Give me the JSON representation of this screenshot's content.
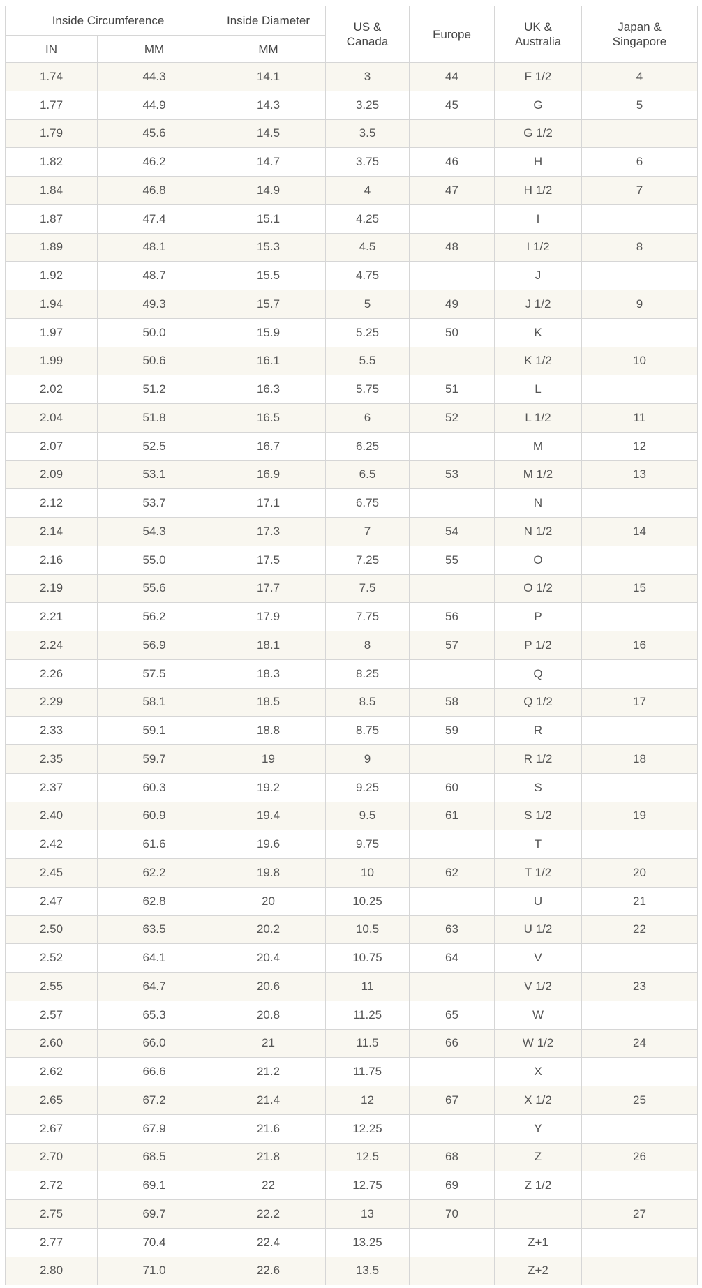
{
  "header": {
    "inside_circumference": "Inside Circumference",
    "inside_diameter": "Inside Diameter",
    "us_canada": [
      "US &",
      "Canada"
    ],
    "europe": "Europe",
    "uk_australia": [
      "UK &",
      "Australia"
    ],
    "japan_singapore": [
      "Japan &",
      "Singapore"
    ],
    "in": "IN",
    "mm": "MM",
    "mm2": "MM"
  },
  "colors": {
    "stripe": "#f9f7f0",
    "border": "#d6d6d6",
    "text": "#555555"
  },
  "rows": [
    [
      "1.74",
      "44.3",
      "14.1",
      "3",
      "44",
      "F 1/2",
      "4"
    ],
    [
      "1.77",
      "44.9",
      "14.3",
      "3.25",
      "45",
      "G",
      "5"
    ],
    [
      "1.79",
      "45.6",
      "14.5",
      "3.5",
      "",
      "G 1/2",
      ""
    ],
    [
      "1.82",
      "46.2",
      "14.7",
      "3.75",
      "46",
      "H",
      "6"
    ],
    [
      "1.84",
      "46.8",
      "14.9",
      "4",
      "47",
      "H 1/2",
      "7"
    ],
    [
      "1.87",
      "47.4",
      "15.1",
      "4.25",
      "",
      "I",
      ""
    ],
    [
      "1.89",
      "48.1",
      "15.3",
      "4.5",
      "48",
      "I 1/2",
      "8"
    ],
    [
      "1.92",
      "48.7",
      "15.5",
      "4.75",
      "",
      "J",
      ""
    ],
    [
      "1.94",
      "49.3",
      "15.7",
      "5",
      "49",
      "J 1/2",
      "9"
    ],
    [
      "1.97",
      "50.0",
      "15.9",
      "5.25",
      "50",
      "K",
      ""
    ],
    [
      "1.99",
      "50.6",
      "16.1",
      "5.5",
      "",
      "K 1/2",
      "10"
    ],
    [
      "2.02",
      "51.2",
      "16.3",
      "5.75",
      "51",
      "L",
      ""
    ],
    [
      "2.04",
      "51.8",
      "16.5",
      "6",
      "52",
      "L 1/2",
      "11"
    ],
    [
      "2.07",
      "52.5",
      "16.7",
      "6.25",
      "",
      "M",
      "12"
    ],
    [
      "2.09",
      "53.1",
      "16.9",
      "6.5",
      "53",
      "M 1/2",
      "13"
    ],
    [
      "2.12",
      "53.7",
      "17.1",
      "6.75",
      "",
      "N",
      ""
    ],
    [
      "2.14",
      "54.3",
      "17.3",
      "7",
      "54",
      "N 1/2",
      "14"
    ],
    [
      "2.16",
      "55.0",
      "17.5",
      "7.25",
      "55",
      "O",
      ""
    ],
    [
      "2.19",
      "55.6",
      "17.7",
      "7.5",
      "",
      "O 1/2",
      "15"
    ],
    [
      "2.21",
      "56.2",
      "17.9",
      "7.75",
      "56",
      "P",
      ""
    ],
    [
      "2.24",
      "56.9",
      "18.1",
      "8",
      "57",
      "P 1/2",
      "16"
    ],
    [
      "2.26",
      "57.5",
      "18.3",
      "8.25",
      "",
      "Q",
      ""
    ],
    [
      "2.29",
      "58.1",
      "18.5",
      "8.5",
      "58",
      "Q 1/2",
      "17"
    ],
    [
      "2.33",
      "59.1",
      "18.8",
      "8.75",
      "59",
      "R",
      ""
    ],
    [
      "2.35",
      "59.7",
      "19",
      "9",
      "",
      "R 1/2",
      "18"
    ],
    [
      "2.37",
      "60.3",
      "19.2",
      "9.25",
      "60",
      "S",
      ""
    ],
    [
      "2.40",
      "60.9",
      "19.4",
      "9.5",
      "61",
      "S 1/2",
      "19"
    ],
    [
      "2.42",
      "61.6",
      "19.6",
      "9.75",
      "",
      "T",
      ""
    ],
    [
      "2.45",
      "62.2",
      "19.8",
      "10",
      "62",
      "T 1/2",
      "20"
    ],
    [
      "2.47",
      "62.8",
      "20",
      "10.25",
      "",
      "U",
      "21"
    ],
    [
      "2.50",
      "63.5",
      "20.2",
      "10.5",
      "63",
      "U 1/2",
      "22"
    ],
    [
      "2.52",
      "64.1",
      "20.4",
      "10.75",
      "64",
      "V",
      ""
    ],
    [
      "2.55",
      "64.7",
      "20.6",
      "11",
      "",
      "V 1/2",
      "23"
    ],
    [
      "2.57",
      "65.3",
      "20.8",
      "11.25",
      "65",
      "W",
      ""
    ],
    [
      "2.60",
      "66.0",
      "21",
      "11.5",
      "66",
      "W 1/2",
      "24"
    ],
    [
      "2.62",
      "66.6",
      "21.2",
      "11.75",
      "",
      "X",
      ""
    ],
    [
      "2.65",
      "67.2",
      "21.4",
      "12",
      "67",
      "X 1/2",
      "25"
    ],
    [
      "2.67",
      "67.9",
      "21.6",
      "12.25",
      "",
      "Y",
      ""
    ],
    [
      "2.70",
      "68.5",
      "21.8",
      "12.5",
      "68",
      "Z",
      "26"
    ],
    [
      "2.72",
      "69.1",
      "22",
      "12.75",
      "69",
      "Z 1/2",
      ""
    ],
    [
      "2.75",
      "69.7",
      "22.2",
      "13",
      "70",
      "",
      "27"
    ],
    [
      "2.77",
      "70.4",
      "22.4",
      "13.25",
      "",
      "Z+1",
      ""
    ],
    [
      "2.80",
      "71.0",
      "22.6",
      "13.5",
      "",
      "Z+2",
      ""
    ]
  ]
}
